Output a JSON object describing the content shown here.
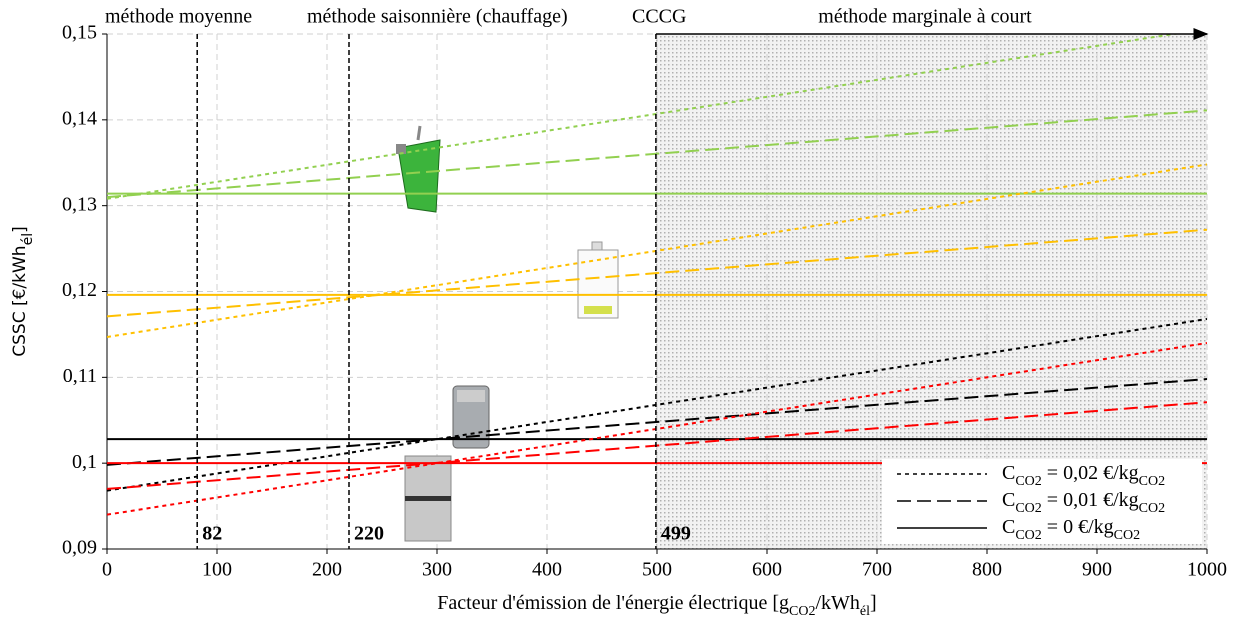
{
  "chart_data": {
    "type": "line",
    "x": [
      0,
      1000
    ],
    "series": [
      {
        "color": "#92d050",
        "dash": "solid",
        "values": [
          0.1314,
          0.1314
        ]
      },
      {
        "color": "#92d050",
        "dash": "long",
        "values": [
          0.131,
          0.1411
        ]
      },
      {
        "color": "#92d050",
        "dash": "short",
        "values": [
          0.1308,
          0.1506
        ]
      },
      {
        "color": "#ffc000",
        "dash": "solid",
        "values": [
          0.1196,
          0.1196
        ]
      },
      {
        "color": "#ffc000",
        "dash": "long",
        "values": [
          0.1171,
          0.1272
        ]
      },
      {
        "color": "#ffc000",
        "dash": "short",
        "values": [
          0.1147,
          0.1348
        ]
      },
      {
        "color": "#000000",
        "dash": "solid",
        "values": [
          0.1028,
          0.1028
        ]
      },
      {
        "color": "#000000",
        "dash": "long",
        "values": [
          0.0998,
          0.1098
        ]
      },
      {
        "color": "#000000",
        "dash": "short",
        "values": [
          0.0968,
          0.1168
        ]
      },
      {
        "color": "#ff0000",
        "dash": "solid",
        "values": [
          0.1,
          0.1
        ]
      },
      {
        "color": "#ff0000",
        "dash": "long",
        "values": [
          0.097,
          0.1071
        ]
      },
      {
        "color": "#ff0000",
        "dash": "short",
        "values": [
          0.094,
          0.114
        ]
      }
    ],
    "xlim": [
      0,
      1000
    ],
    "xticks": [
      0,
      100,
      200,
      300,
      400,
      500,
      600,
      700,
      800,
      900,
      1000
    ],
    "ylim": [
      0.09,
      0.15
    ],
    "yticks": [
      {
        "value": 0.09,
        "label": "0,09"
      },
      {
        "value": 0.1,
        "label": "0,1"
      },
      {
        "value": 0.11,
        "label": "0,11"
      },
      {
        "value": 0.12,
        "label": "0,12"
      },
      {
        "value": 0.13,
        "label": "0,13"
      },
      {
        "value": 0.14,
        "label": "0,14"
      },
      {
        "value": 0.15,
        "label": "0,15"
      }
    ],
    "grid": true,
    "x_label": [
      {
        "text": "Facteur d'émission de l'énergie électrique  [g",
        "sub": false
      },
      {
        "text": "CO2",
        "sub": true
      },
      {
        "text": "/kWh",
        "sub": false
      },
      {
        "text": "él",
        "sub": true
      },
      {
        "text": "]",
        "sub": false
      }
    ],
    "y_label": [
      {
        "text": "CSSC  [€/kWh",
        "sub": false
      },
      {
        "text": "él",
        "sub": true
      },
      {
        "text": "]",
        "sub": false
      }
    ],
    "vlines": [
      82,
      220,
      499
    ],
    "annotations": [
      "méthode moyenne",
      "méthode saisonnière (chauffage)",
      "CCCG",
      "méthode marginale à court"
    ],
    "legend": {
      "position": "lower right",
      "entries": [
        {
          "dash": "short",
          "parts": [
            {
              "text": "C",
              "sub": false
            },
            {
              "text": "CO2",
              "sub": true
            },
            {
              "text": " = 0,02 €/kg",
              "sub": false
            },
            {
              "text": "CO2",
              "sub": true
            }
          ]
        },
        {
          "dash": "long",
          "parts": [
            {
              "text": "C",
              "sub": false
            },
            {
              "text": "CO2",
              "sub": true
            },
            {
              "text": " = 0,01 €/kg",
              "sub": false
            },
            {
              "text": "CO2",
              "sub": true
            }
          ]
        },
        {
          "dash": "solid",
          "parts": [
            {
              "text": "C",
              "sub": false
            },
            {
              "text": "CO2",
              "sub": true
            },
            {
              "text": " = 0 €/kg",
              "sub": false
            },
            {
              "text": "CO2",
              "sub": true
            }
          ]
        }
      ]
    }
  }
}
